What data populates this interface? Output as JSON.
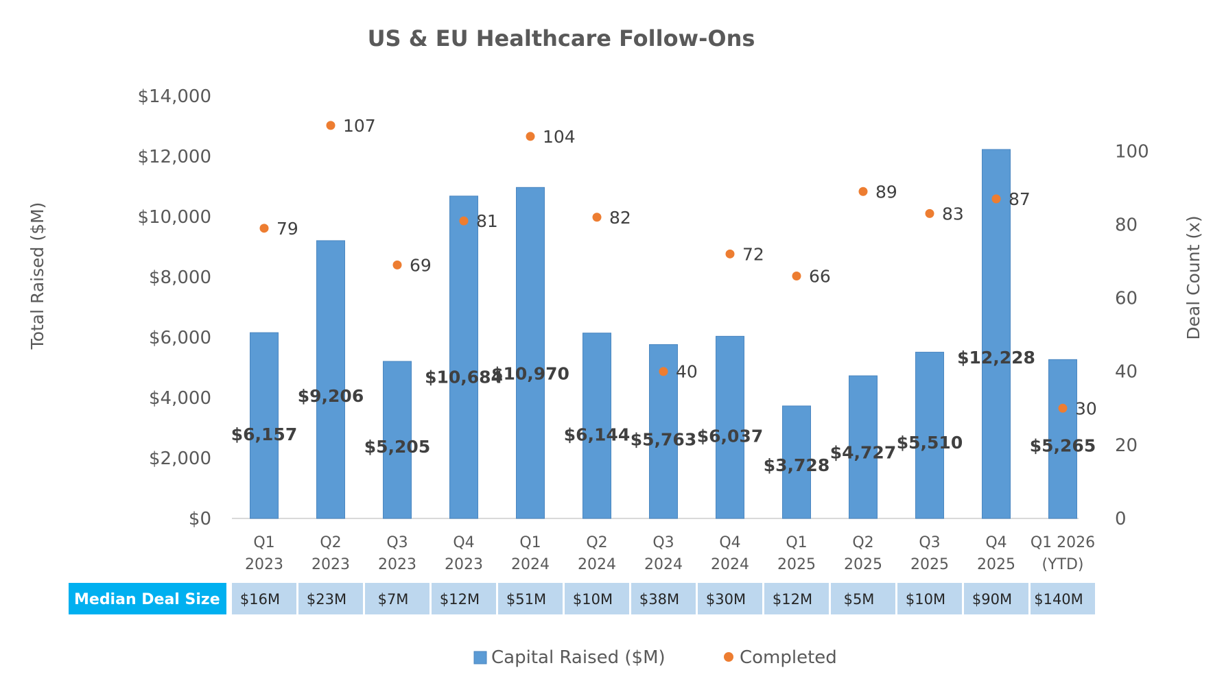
{
  "chart_data": {
    "type": "bar",
    "title": "US & EU Healthcare Follow-Ons",
    "ylabel": "Total Raised ($M)",
    "y2label": "Deal Count (x)",
    "ylim": [
      0,
      14000
    ],
    "y2lim": [
      0,
      115
    ],
    "yticks": [
      "$0",
      "$2,000",
      "$4,000",
      "$6,000",
      "$8,000",
      "$10,000",
      "$12,000",
      "$14,000"
    ],
    "y2ticks": [
      "0",
      "20",
      "40",
      "60",
      "80",
      "100"
    ],
    "categories": [
      [
        "Q1",
        "2023"
      ],
      [
        "Q2",
        "2023"
      ],
      [
        "Q3",
        "2023"
      ],
      [
        "Q4",
        "2023"
      ],
      [
        "Q1",
        "2024"
      ],
      [
        "Q2",
        "2024"
      ],
      [
        "Q3",
        "2024"
      ],
      [
        "Q4",
        "2024"
      ],
      [
        "Q1",
        "2025"
      ],
      [
        "Q2",
        "2025"
      ],
      [
        "Q3",
        "2025"
      ],
      [
        "Q4",
        "2025"
      ],
      [
        "Q1 2026",
        "(YTD)"
      ]
    ],
    "series": [
      {
        "name": "Capital Raised ($M)",
        "type": "bar",
        "axis": "left",
        "color": "#5B9BD5",
        "values": [
          6157,
          9206,
          5205,
          10684,
          10970,
          6144,
          5763,
          6037,
          3728,
          4727,
          5510,
          12228,
          5265
        ],
        "labels": [
          "$6,157",
          "$9,206",
          "$5,205",
          "$10,684",
          "$10,970",
          "$6,144",
          "$5,763",
          "$6,037",
          "$3,728",
          "$4,727",
          "$5,510",
          "$12,228",
          "$5,265"
        ]
      },
      {
        "name": "Completed",
        "type": "scatter",
        "axis": "right",
        "color": "#ED7D31",
        "values": [
          79,
          107,
          69,
          81,
          104,
          82,
          40,
          72,
          66,
          89,
          83,
          87,
          30
        ],
        "labels": [
          "79",
          "107",
          "69",
          "81",
          "104",
          "82",
          "40",
          "72",
          "66",
          "89",
          "83",
          "87",
          "30"
        ]
      }
    ],
    "table": {
      "header": "Median Deal Size",
      "values": [
        "$16M",
        "$23M",
        "$7M",
        "$12M",
        "$51M",
        "$10M",
        "$38M",
        "$30M",
        "$12M",
        "$5M",
        "$10M",
        "$90M",
        "$140M"
      ],
      "header_color": "#00B0F0",
      "cell_color": "#BDD7EE"
    },
    "legend": {
      "position": "bottom",
      "items": [
        "Capital Raised ($M)",
        "Completed"
      ]
    },
    "grid": false
  }
}
